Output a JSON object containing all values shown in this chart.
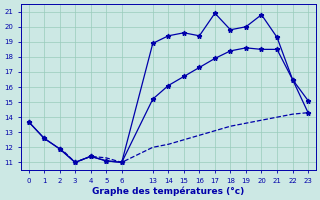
{
  "xlabel": "Graphe des températures (°c)",
  "bg_color": "#cce8e4",
  "line_color": "#0000aa",
  "grid_color": "#99ccbb",
  "ylim": [
    10.5,
    21.5
  ],
  "yticks": [
    11,
    12,
    13,
    14,
    15,
    16,
    17,
    18,
    19,
    20,
    21
  ],
  "hours_left": [
    0,
    1,
    2,
    3,
    4,
    5,
    6
  ],
  "hours_right": [
    13,
    14,
    15,
    16,
    17,
    18,
    19,
    20,
    21,
    22,
    23
  ],
  "line1_hours": [
    0,
    1,
    2,
    3,
    4,
    5,
    6,
    13,
    14,
    15,
    16,
    17,
    18,
    19,
    20,
    21,
    22,
    23
  ],
  "line1_y": [
    13.7,
    12.6,
    11.9,
    11.0,
    11.4,
    11.1,
    11.0,
    18.9,
    19.4,
    19.6,
    19.4,
    20.9,
    19.8,
    20.0,
    20.8,
    19.3,
    16.5,
    15.1
  ],
  "line2_hours": [
    0,
    1,
    2,
    3,
    4,
    5,
    6,
    13,
    14,
    15,
    16,
    17,
    18,
    19,
    20,
    21,
    22,
    23
  ],
  "line2_y": [
    13.7,
    12.6,
    11.9,
    11.0,
    11.4,
    11.1,
    11.0,
    15.2,
    16.1,
    16.7,
    17.3,
    17.9,
    18.4,
    18.6,
    18.5,
    18.5,
    16.5,
    14.3
  ],
  "line3_hours": [
    2,
    3,
    4,
    5,
    6,
    13,
    14,
    15,
    16,
    17,
    18,
    19,
    20,
    21,
    22,
    23
  ],
  "line3_y": [
    12.0,
    11.0,
    11.4,
    11.3,
    11.0,
    12.0,
    12.2,
    12.5,
    12.8,
    13.1,
    13.4,
    13.6,
    13.8,
    14.0,
    14.2,
    14.3
  ]
}
